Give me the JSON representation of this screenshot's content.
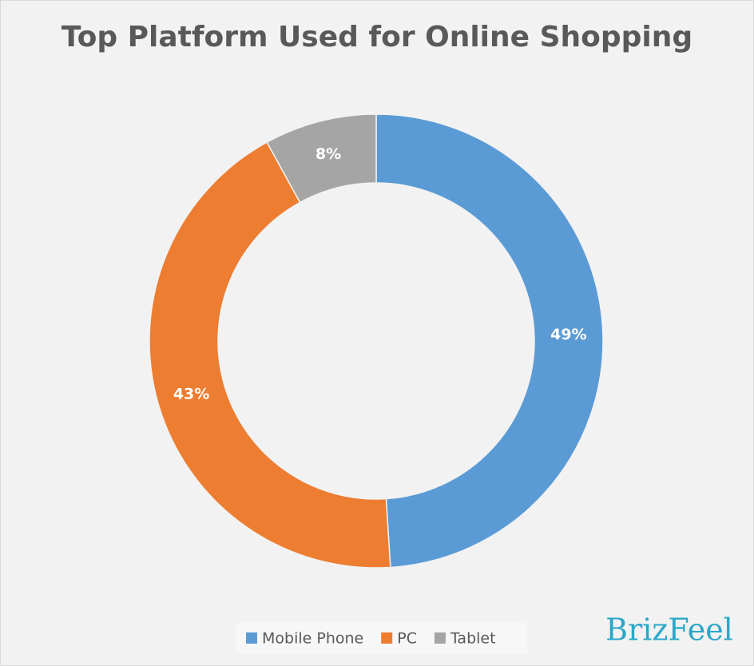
{
  "chart_data": {
    "type": "donut",
    "title": "Top Platform Used for Online Shopping",
    "categories": [
      "Mobile Phone",
      "PC",
      "Tablet"
    ],
    "values": [
      49,
      43,
      8
    ],
    "value_labels": [
      "49%",
      "43%",
      "8%"
    ],
    "colors": [
      "#5b9bd5",
      "#ed7d31",
      "#a5a5a5"
    ],
    "legend": "bottom"
  },
  "watermark": "BrizFeel"
}
